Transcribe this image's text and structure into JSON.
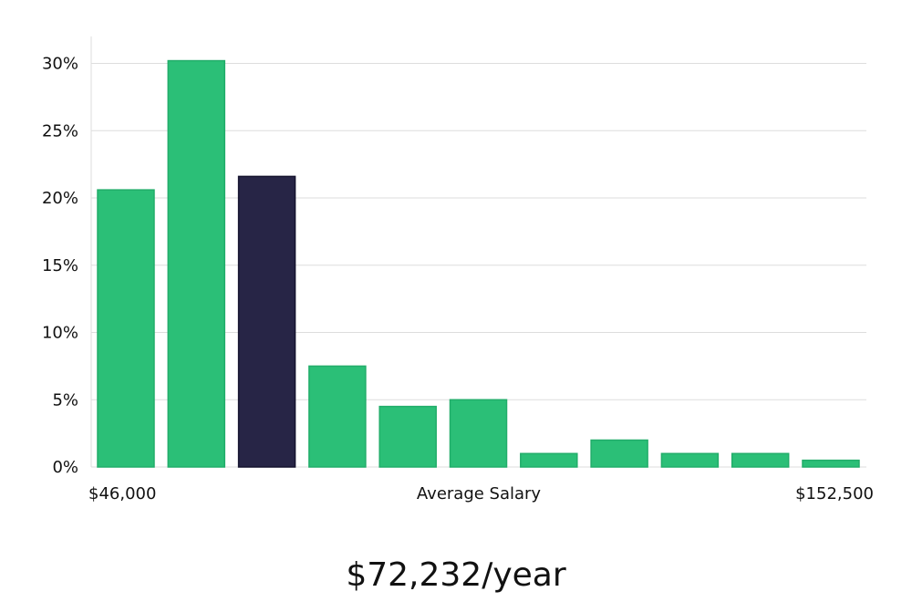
{
  "chart_data": {
    "type": "bar",
    "title": "",
    "xlabel": "Average Salary",
    "ylabel": "",
    "x_min_label": "$46,000",
    "x_max_label": "$152,500",
    "ylim": [
      0,
      0.32
    ],
    "yticks": [
      0,
      0.05,
      0.1,
      0.15,
      0.2,
      0.25,
      0.3
    ],
    "ytick_labels": [
      "0%",
      "5%",
      "10%",
      "15%",
      "20%",
      "25%",
      "30%"
    ],
    "grid": true,
    "values": [
      0.206,
      0.302,
      0.216,
      0.075,
      0.045,
      0.05,
      0.01,
      0.02,
      0.01,
      0.01,
      0.005
    ],
    "highlight_index": 2,
    "colors": {
      "bar": "#2bbf77",
      "bar_border": "#22ad6a",
      "highlight": "#272546",
      "highlight_border": "#15132e",
      "grid": "#dddddd",
      "axis": "#dddddd"
    }
  },
  "salary": {
    "value": "$72,232/year"
  }
}
